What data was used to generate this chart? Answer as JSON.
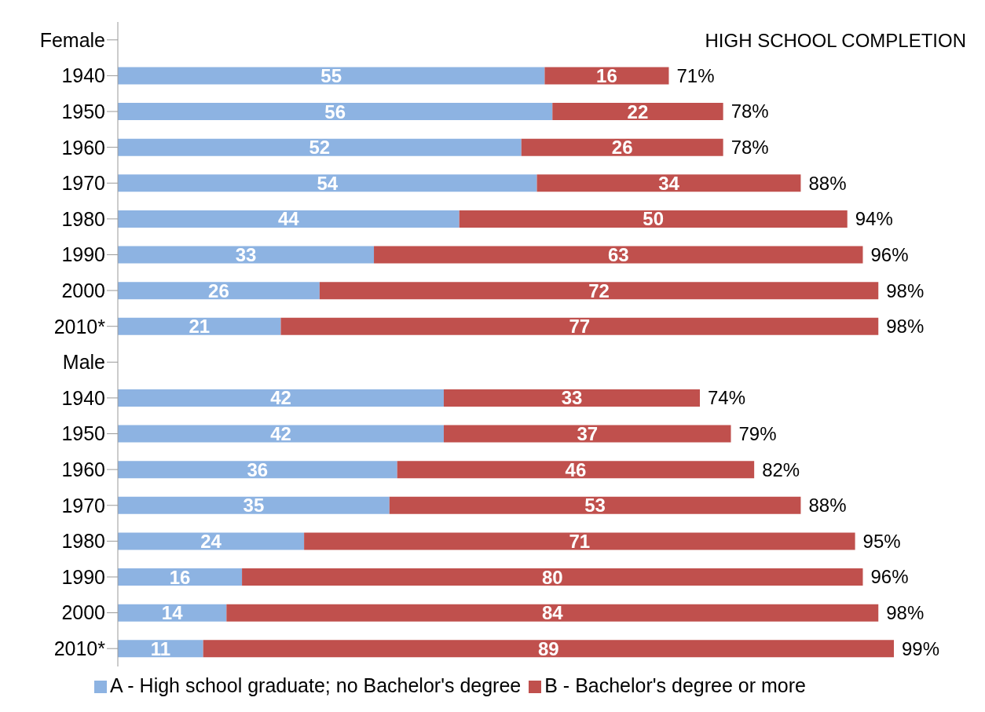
{
  "chart_data": {
    "type": "bar",
    "orientation": "horizontal",
    "stacked": true,
    "title": "HIGH SCHOOL COMPLETION",
    "categories": [
      "Female",
      "1940",
      "1950",
      "1960",
      "1970",
      "1980",
      "1990",
      "2000",
      "2010*",
      "Male",
      "1940",
      "1950",
      "1960",
      "1970",
      "1980",
      "1990",
      "2000",
      "2010*"
    ],
    "series": [
      {
        "name": "A - High school graduate; no Bachelor's degree",
        "color": "#8db3e2",
        "values": [
          null,
          55,
          56,
          52,
          54,
          44,
          33,
          26,
          21,
          null,
          42,
          42,
          36,
          35,
          24,
          16,
          14,
          11
        ]
      },
      {
        "name": "B - Bachelor's degree or more",
        "color": "#c0504d",
        "values": [
          null,
          16,
          22,
          26,
          34,
          50,
          63,
          72,
          77,
          null,
          33,
          37,
          46,
          53,
          71,
          80,
          84,
          89
        ]
      }
    ],
    "totals": [
      null,
      "71%",
      "78%",
      "78%",
      "88%",
      "94%",
      "96%",
      "98%",
      "98%",
      null,
      "74%",
      "79%",
      "82%",
      "88%",
      "95%",
      "96%",
      "98%",
      "99%"
    ],
    "data_labels": true,
    "tick_labels": "y",
    "legend": "bottom"
  }
}
